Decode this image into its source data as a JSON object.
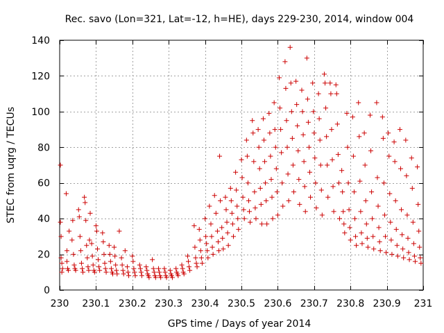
{
  "chart_data": {
    "type": "scatter",
    "title": "Rec. savo (Lon=321, Lat=-12, h=HE), days 229-230, 2014, window 004",
    "xlabel": "GPS time / Days of year 2014",
    "ylabel": "STEC from uqrg / TECUs",
    "xlim": [
      230,
      231
    ],
    "ylim": [
      0,
      140
    ],
    "xticks": [
      230,
      230.1,
      230.2,
      230.3,
      230.4,
      230.5,
      230.6,
      230.7,
      230.8,
      230.9,
      231
    ],
    "xtick_labels": [
      "230",
      "230.1",
      "230.2",
      "230.3",
      "230.4",
      "230.5",
      "230.6",
      "230.7",
      "230.8",
      "230.9",
      "231"
    ],
    "yticks": [
      0,
      20,
      40,
      60,
      80,
      100,
      120,
      140
    ],
    "ytick_labels": [
      "0",
      "20",
      "40",
      "60",
      "80",
      "100",
      "120",
      "140"
    ],
    "grid": true,
    "marker": "plus",
    "color": "#cc0000",
    "points": [
      [
        230.002,
        70
      ],
      [
        230.002,
        38
      ],
      [
        230.004,
        30
      ],
      [
        230.004,
        18
      ],
      [
        230.006,
        15
      ],
      [
        230.008,
        12
      ],
      [
        230.006,
        10
      ],
      [
        230.018,
        54
      ],
      [
        230.02,
        22
      ],
      [
        230.02,
        16
      ],
      [
        230.022,
        12
      ],
      [
        230.024,
        11
      ],
      [
        230.026,
        33
      ],
      [
        230.034,
        28
      ],
      [
        230.036,
        39
      ],
      [
        230.038,
        20
      ],
      [
        230.04,
        14
      ],
      [
        230.042,
        12
      ],
      [
        230.044,
        11
      ],
      [
        230.052,
        45
      ],
      [
        230.054,
        41
      ],
      [
        230.056,
        30
      ],
      [
        230.058,
        22
      ],
      [
        230.06,
        15
      ],
      [
        230.062,
        12
      ],
      [
        230.064,
        10
      ],
      [
        230.068,
        52
      ],
      [
        230.07,
        49
      ],
      [
        230.072,
        39
      ],
      [
        230.074,
        25
      ],
      [
        230.076,
        18
      ],
      [
        230.078,
        13
      ],
      [
        230.08,
        11
      ],
      [
        230.082,
        28
      ],
      [
        230.084,
        43
      ],
      [
        230.088,
        26
      ],
      [
        230.09,
        19
      ],
      [
        230.092,
        14
      ],
      [
        230.094,
        11
      ],
      [
        230.096,
        10
      ],
      [
        230.1,
        36
      ],
      [
        230.102,
        33
      ],
      [
        230.104,
        23
      ],
      [
        230.106,
        17
      ],
      [
        230.108,
        13
      ],
      [
        230.11,
        11
      ],
      [
        230.118,
        32
      ],
      [
        230.12,
        27
      ],
      [
        230.122,
        20
      ],
      [
        230.124,
        15
      ],
      [
        230.126,
        12
      ],
      [
        230.128,
        10
      ],
      [
        230.136,
        25
      ],
      [
        230.138,
        20
      ],
      [
        230.14,
        16
      ],
      [
        230.142,
        12
      ],
      [
        230.144,
        10
      ],
      [
        230.146,
        9
      ],
      [
        230.15,
        24
      ],
      [
        230.152,
        19
      ],
      [
        230.154,
        14
      ],
      [
        230.156,
        11
      ],
      [
        230.158,
        9
      ],
      [
        230.17,
        18
      ],
      [
        230.172,
        14
      ],
      [
        230.174,
        11
      ],
      [
        230.176,
        9
      ],
      [
        230.164,
        33
      ],
      [
        230.18,
        22
      ],
      [
        230.186,
        13
      ],
      [
        230.188,
        10
      ],
      [
        230.19,
        8
      ],
      [
        230.2,
        19
      ],
      [
        230.202,
        16
      ],
      [
        230.204,
        12
      ],
      [
        230.206,
        10
      ],
      [
        230.208,
        8
      ],
      [
        230.22,
        14
      ],
      [
        230.222,
        12
      ],
      [
        230.224,
        10
      ],
      [
        230.226,
        8
      ],
      [
        230.238,
        13
      ],
      [
        230.24,
        11
      ],
      [
        230.242,
        9
      ],
      [
        230.244,
        8
      ],
      [
        230.246,
        7
      ],
      [
        230.255,
        17
      ],
      [
        230.258,
        12
      ],
      [
        230.26,
        10
      ],
      [
        230.262,
        8
      ],
      [
        230.264,
        7
      ],
      [
        230.272,
        12
      ],
      [
        230.274,
        10
      ],
      [
        230.276,
        8
      ],
      [
        230.278,
        7
      ],
      [
        230.288,
        12
      ],
      [
        230.29,
        10
      ],
      [
        230.292,
        8
      ],
      [
        230.294,
        7
      ],
      [
        230.304,
        11
      ],
      [
        230.306,
        9
      ],
      [
        230.308,
        8
      ],
      [
        230.31,
        7
      ],
      [
        230.32,
        12
      ],
      [
        230.322,
        10
      ],
      [
        230.324,
        9
      ],
      [
        230.326,
        8
      ],
      [
        230.336,
        14
      ],
      [
        230.338,
        12
      ],
      [
        230.34,
        10
      ],
      [
        230.342,
        9
      ],
      [
        230.352,
        19
      ],
      [
        230.354,
        16
      ],
      [
        230.356,
        13
      ],
      [
        230.358,
        11
      ],
      [
        230.37,
        36
      ],
      [
        230.372,
        24
      ],
      [
        230.374,
        18
      ],
      [
        230.376,
        15
      ],
      [
        230.378,
        13
      ],
      [
        230.384,
        34
      ],
      [
        230.386,
        28
      ],
      [
        230.388,
        22
      ],
      [
        230.39,
        18
      ],
      [
        230.392,
        15
      ],
      [
        230.4,
        40
      ],
      [
        230.402,
        30
      ],
      [
        230.404,
        26
      ],
      [
        230.406,
        22
      ],
      [
        230.408,
        18
      ],
      [
        230.412,
        47
      ],
      [
        230.416,
        37
      ],
      [
        230.418,
        30
      ],
      [
        230.42,
        24
      ],
      [
        230.422,
        20
      ],
      [
        230.426,
        53
      ],
      [
        230.43,
        43
      ],
      [
        230.434,
        33
      ],
      [
        230.436,
        27
      ],
      [
        230.438,
        22
      ],
      [
        230.44,
        75
      ],
      [
        230.442,
        50
      ],
      [
        230.446,
        35
      ],
      [
        230.448,
        29
      ],
      [
        230.45,
        23
      ],
      [
        230.456,
        52
      ],
      [
        230.458,
        45
      ],
      [
        230.46,
        38
      ],
      [
        230.462,
        32
      ],
      [
        230.464,
        25
      ],
      [
        230.47,
        57
      ],
      [
        230.472,
        50
      ],
      [
        230.474,
        43
      ],
      [
        230.476,
        37
      ],
      [
        230.478,
        30
      ],
      [
        230.484,
        66
      ],
      [
        230.486,
        56
      ],
      [
        230.488,
        47
      ],
      [
        230.49,
        40
      ],
      [
        230.492,
        34
      ],
      [
        230.5,
        73
      ],
      [
        230.502,
        63
      ],
      [
        230.504,
        52
      ],
      [
        230.506,
        45
      ],
      [
        230.508,
        40
      ],
      [
        230.514,
        84
      ],
      [
        230.516,
        75
      ],
      [
        230.518,
        60
      ],
      [
        230.52,
        50
      ],
      [
        230.522,
        44
      ],
      [
        230.524,
        38
      ],
      [
        230.53,
        95
      ],
      [
        230.532,
        88
      ],
      [
        230.534,
        72
      ],
      [
        230.536,
        55
      ],
      [
        230.538,
        46
      ],
      [
        230.54,
        40
      ],
      [
        230.546,
        90
      ],
      [
        230.548,
        80
      ],
      [
        230.55,
        68
      ],
      [
        230.552,
        57
      ],
      [
        230.554,
        48
      ],
      [
        230.556,
        37
      ],
      [
        230.56,
        96
      ],
      [
        230.562,
        84
      ],
      [
        230.564,
        72
      ],
      [
        230.566,
        60
      ],
      [
        230.568,
        50
      ],
      [
        230.57,
        37
      ],
      [
        230.576,
        99
      ],
      [
        230.578,
        88
      ],
      [
        230.58,
        75
      ],
      [
        230.582,
        62
      ],
      [
        230.584,
        52
      ],
      [
        230.586,
        40
      ],
      [
        230.59,
        105
      ],
      [
        230.592,
        90
      ],
      [
        230.594,
        80
      ],
      [
        230.596,
        68
      ],
      [
        230.598,
        55
      ],
      [
        230.6,
        42
      ],
      [
        230.604,
        119
      ],
      [
        230.606,
        102
      ],
      [
        230.608,
        90
      ],
      [
        230.61,
        77
      ],
      [
        230.612,
        60
      ],
      [
        230.614,
        47
      ],
      [
        230.62,
        128
      ],
      [
        230.622,
        113
      ],
      [
        230.624,
        95
      ],
      [
        230.626,
        80
      ],
      [
        230.628,
        65
      ],
      [
        230.63,
        50
      ],
      [
        230.634,
        136
      ],
      [
        230.636,
        116
      ],
      [
        230.638,
        100
      ],
      [
        230.64,
        85
      ],
      [
        230.642,
        70
      ],
      [
        230.644,
        55
      ],
      [
        230.65,
        117
      ],
      [
        230.652,
        104
      ],
      [
        230.654,
        92
      ],
      [
        230.656,
        78
      ],
      [
        230.658,
        62
      ],
      [
        230.66,
        48
      ],
      [
        230.666,
        112
      ],
      [
        230.668,
        100
      ],
      [
        230.67,
        87
      ],
      [
        230.672,
        72
      ],
      [
        230.674,
        58
      ],
      [
        230.676,
        44
      ],
      [
        230.68,
        130
      ],
      [
        230.682,
        107
      ],
      [
        230.684,
        94
      ],
      [
        230.686,
        80
      ],
      [
        230.688,
        66
      ],
      [
        230.69,
        52
      ],
      [
        230.696,
        116
      ],
      [
        230.698,
        100
      ],
      [
        230.7,
        88
      ],
      [
        230.702,
        74
      ],
      [
        230.704,
        60
      ],
      [
        230.706,
        46
      ],
      [
        230.712,
        110
      ],
      [
        230.714,
        96
      ],
      [
        230.716,
        84
      ],
      [
        230.718,
        70
      ],
      [
        230.72,
        56
      ],
      [
        230.722,
        42
      ],
      [
        230.728,
        121
      ],
      [
        230.73,
        116
      ],
      [
        230.732,
        102
      ],
      [
        230.734,
        86
      ],
      [
        230.736,
        70
      ],
      [
        230.738,
        52
      ],
      [
        230.744,
        116
      ],
      [
        230.746,
        110
      ],
      [
        230.748,
        90
      ],
      [
        230.75,
        73
      ],
      [
        230.752,
        58
      ],
      [
        230.754,
        44
      ],
      [
        230.76,
        115
      ],
      [
        230.762,
        110
      ],
      [
        230.764,
        93
      ],
      [
        230.766,
        76
      ],
      [
        230.768,
        60
      ],
      [
        230.77,
        40
      ],
      [
        230.776,
        67
      ],
      [
        230.778,
        55
      ],
      [
        230.78,
        44
      ],
      [
        230.782,
        37
      ],
      [
        230.784,
        32
      ],
      [
        230.79,
        99
      ],
      [
        230.792,
        80
      ],
      [
        230.794,
        60
      ],
      [
        230.796,
        45
      ],
      [
        230.798,
        35
      ],
      [
        230.8,
        28
      ],
      [
        230.806,
        97
      ],
      [
        230.808,
        75
      ],
      [
        230.81,
        55
      ],
      [
        230.812,
        40
      ],
      [
        230.814,
        30
      ],
      [
        230.816,
        25
      ],
      [
        230.822,
        105
      ],
      [
        230.824,
        86
      ],
      [
        230.826,
        61
      ],
      [
        230.828,
        44
      ],
      [
        230.83,
        32
      ],
      [
        230.832,
        26
      ],
      [
        230.838,
        88
      ],
      [
        230.84,
        70
      ],
      [
        230.842,
        50
      ],
      [
        230.844,
        37
      ],
      [
        230.846,
        29
      ],
      [
        230.848,
        24
      ],
      [
        230.854,
        98
      ],
      [
        230.856,
        78
      ],
      [
        230.858,
        55
      ],
      [
        230.86,
        40
      ],
      [
        230.862,
        30
      ],
      [
        230.864,
        23
      ],
      [
        230.872,
        105
      ],
      [
        230.874,
        63
      ],
      [
        230.876,
        47
      ],
      [
        230.878,
        35
      ],
      [
        230.88,
        27
      ],
      [
        230.882,
        22
      ],
      [
        230.888,
        97
      ],
      [
        230.89,
        85
      ],
      [
        230.892,
        60
      ],
      [
        230.894,
        42
      ],
      [
        230.896,
        30
      ],
      [
        230.898,
        21
      ],
      [
        230.904,
        88
      ],
      [
        230.906,
        75
      ],
      [
        230.908,
        54
      ],
      [
        230.91,
        38
      ],
      [
        230.912,
        28
      ],
      [
        230.914,
        20
      ],
      [
        230.92,
        83
      ],
      [
        230.922,
        72
      ],
      [
        230.924,
        50
      ],
      [
        230.926,
        34
      ],
      [
        230.928,
        25
      ],
      [
        230.93,
        19
      ],
      [
        230.936,
        90
      ],
      [
        230.938,
        68
      ],
      [
        230.94,
        45
      ],
      [
        230.942,
        31
      ],
      [
        230.944,
        23
      ],
      [
        230.946,
        18
      ],
      [
        230.952,
        84
      ],
      [
        230.954,
        64
      ],
      [
        230.956,
        42
      ],
      [
        230.958,
        29
      ],
      [
        230.96,
        21
      ],
      [
        230.962,
        17
      ],
      [
        230.968,
        74
      ],
      [
        230.97,
        57
      ],
      [
        230.972,
        38
      ],
      [
        230.974,
        26
      ],
      [
        230.976,
        19
      ],
      [
        230.978,
        16
      ],
      [
        230.984,
        69
      ],
      [
        230.986,
        48
      ],
      [
        230.988,
        33
      ],
      [
        230.99,
        24
      ],
      [
        230.992,
        18
      ],
      [
        230.994,
        15
      ]
    ]
  }
}
